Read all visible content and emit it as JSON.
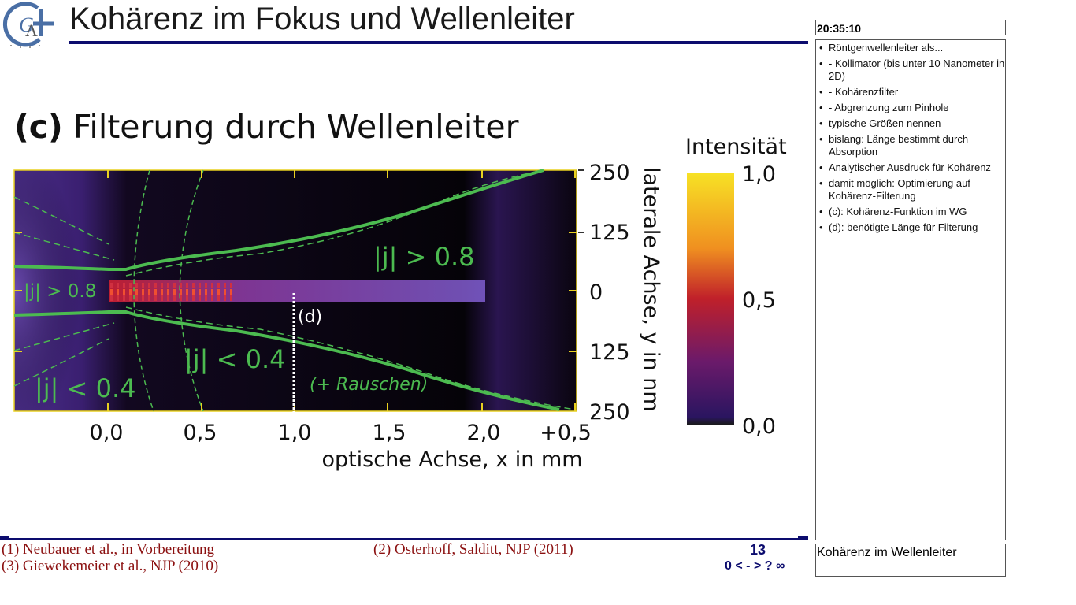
{
  "slide": {
    "title": "Kohärenz im Fokus und Wellenleiter",
    "subhead_label": "(c)",
    "subhead_text": "Filterung durch Wellenleiter",
    "page_number": "13",
    "nav": [
      "0",
      "<",
      "-",
      ">",
      "?",
      "∞"
    ]
  },
  "figure": {
    "x_tick_labels": [
      "0,0",
      "0,5",
      "1,0",
      "1,5",
      "2,0",
      "+0,5"
    ],
    "x_axis_label": "optische Achse, x in mm",
    "y_tick_labels": [
      "250",
      "125",
      "0",
      "125",
      "250"
    ],
    "y_axis_label": "laterale Achse, y in nm",
    "colorbar_title": "Intensität",
    "colorbar_ticks": [
      "1,0",
      "0,5",
      "0,0"
    ],
    "annotations": {
      "gt_left": "|j| > 0.8",
      "gt_right": "|j| > 0.8",
      "lt_mid": "|j| < 0.4",
      "lt_left": "|j| < 0.4",
      "d_marker": "(d)",
      "noise": "(+ Rauschen)"
    },
    "colors": {
      "contour": "#4cbb50",
      "bar_top": "#f7e225",
      "bar_mid": "#c0202a",
      "bar_low": "#3d1e6e",
      "bar_bottom": "#1a1a1a"
    }
  },
  "references": {
    "r1": "(1) Neubauer et al., in Vorbereitung",
    "r2": "(2) Osterhoff, Salditt, NJP (2011)",
    "r3": "(3) Giewekemeier et al., NJP (2010)"
  },
  "sidebar": {
    "clock": "20:35:10",
    "notes": [
      "Röntgenwellenleiter als...",
      "- Kollimator (bis unter 10 Nanometer in 2D)",
      "- Kohärenzfilter",
      "- Abgrenzung zum Pinhole",
      "typische Größen nennen",
      "bislang: Länge bestimmt durch Absorption",
      "Analytischer Ausdruck für Kohärenz",
      "damit möglich: Optimierung auf Kohärenz-Filterung",
      "(c): Kohärenz-Funktion im WG",
      "(d): benötigte Länge für Filterung"
    ],
    "footer_title": "Kohärenz im Wellenleiter"
  }
}
